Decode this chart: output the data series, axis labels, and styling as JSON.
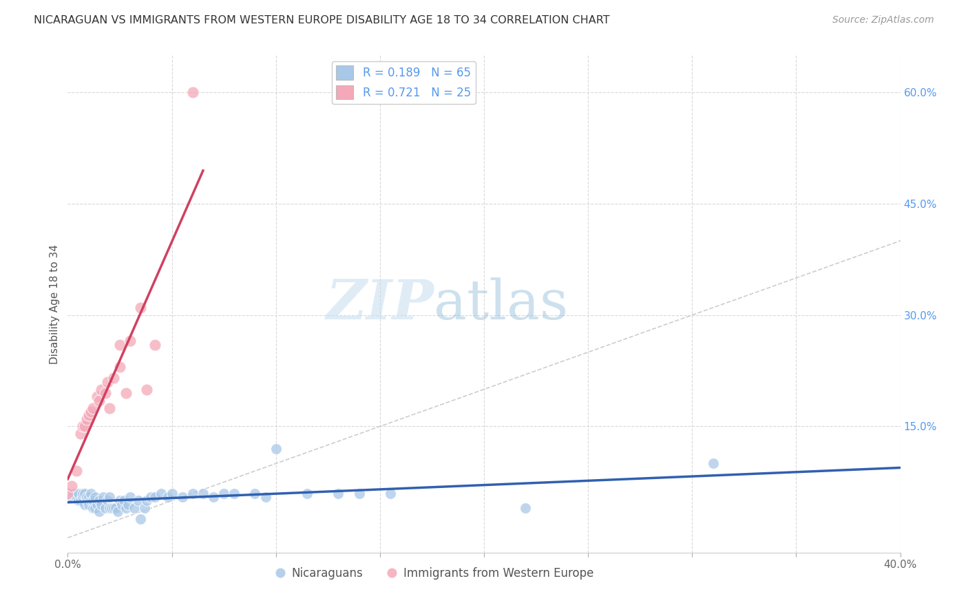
{
  "title": "NICARAGUAN VS IMMIGRANTS FROM WESTERN EUROPE DISABILITY AGE 18 TO 34 CORRELATION CHART",
  "source": "Source: ZipAtlas.com",
  "ylabel": "Disability Age 18 to 34",
  "xlim": [
    0.0,
    0.4
  ],
  "ylim": [
    -0.02,
    0.65
  ],
  "xticks": [
    0.0,
    0.05,
    0.1,
    0.15,
    0.2,
    0.25,
    0.3,
    0.35,
    0.4
  ],
  "xticklabels": [
    "0.0%",
    "",
    "",
    "",
    "",
    "",
    "",
    "",
    "40.0%"
  ],
  "yticks_right": [
    0.0,
    0.15,
    0.3,
    0.45,
    0.6
  ],
  "ytick_labels_right": [
    "",
    "15.0%",
    "30.0%",
    "45.0%",
    "60.0%"
  ],
  "blue_R": 0.189,
  "blue_N": 65,
  "pink_R": 0.721,
  "pink_N": 25,
  "blue_color": "#a8c8e8",
  "pink_color": "#f4a8b8",
  "blue_line_color": "#3060b0",
  "pink_line_color": "#d04060",
  "diag_line_color": "#c8c8c8",
  "grid_color": "#d8d8d8",
  "blue_points_x": [
    0.0,
    0.002,
    0.003,
    0.004,
    0.005,
    0.005,
    0.006,
    0.007,
    0.007,
    0.008,
    0.008,
    0.009,
    0.009,
    0.01,
    0.01,
    0.011,
    0.011,
    0.012,
    0.012,
    0.013,
    0.013,
    0.014,
    0.015,
    0.015,
    0.016,
    0.017,
    0.018,
    0.019,
    0.02,
    0.02,
    0.021,
    0.022,
    0.023,
    0.024,
    0.025,
    0.026,
    0.027,
    0.028,
    0.029,
    0.03,
    0.032,
    0.034,
    0.035,
    0.037,
    0.038,
    0.04,
    0.042,
    0.045,
    0.048,
    0.05,
    0.055,
    0.06,
    0.065,
    0.07,
    0.075,
    0.08,
    0.09,
    0.095,
    0.1,
    0.115,
    0.13,
    0.14,
    0.155,
    0.22,
    0.31
  ],
  "blue_points_y": [
    0.06,
    0.055,
    0.06,
    0.055,
    0.05,
    0.06,
    0.05,
    0.055,
    0.06,
    0.045,
    0.06,
    0.05,
    0.055,
    0.045,
    0.055,
    0.05,
    0.06,
    0.04,
    0.05,
    0.04,
    0.055,
    0.045,
    0.035,
    0.05,
    0.045,
    0.055,
    0.04,
    0.05,
    0.04,
    0.055,
    0.04,
    0.04,
    0.04,
    0.035,
    0.05,
    0.045,
    0.05,
    0.04,
    0.045,
    0.055,
    0.04,
    0.05,
    0.025,
    0.04,
    0.05,
    0.055,
    0.055,
    0.06,
    0.055,
    0.06,
    0.055,
    0.06,
    0.06,
    0.055,
    0.06,
    0.06,
    0.06,
    0.055,
    0.12,
    0.06,
    0.06,
    0.06,
    0.06,
    0.04,
    0.1
  ],
  "pink_points_x": [
    0.0,
    0.002,
    0.004,
    0.006,
    0.007,
    0.008,
    0.009,
    0.01,
    0.011,
    0.012,
    0.014,
    0.015,
    0.016,
    0.018,
    0.019,
    0.02,
    0.022,
    0.025,
    0.025,
    0.028,
    0.03,
    0.035,
    0.038,
    0.042,
    0.06
  ],
  "pink_points_y": [
    0.06,
    0.07,
    0.09,
    0.14,
    0.15,
    0.15,
    0.16,
    0.165,
    0.17,
    0.175,
    0.19,
    0.185,
    0.2,
    0.195,
    0.21,
    0.175,
    0.215,
    0.26,
    0.23,
    0.195,
    0.265,
    0.31,
    0.2,
    0.26,
    0.6
  ]
}
